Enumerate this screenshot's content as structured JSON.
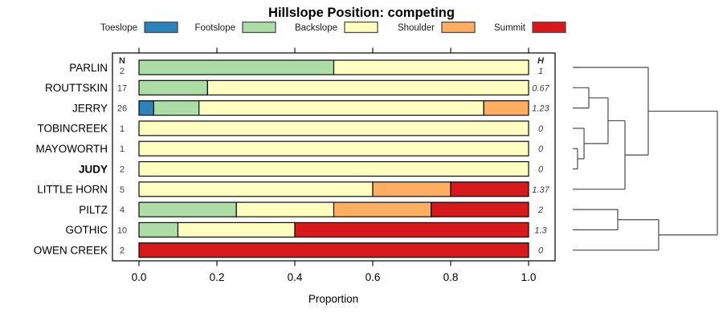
{
  "chart_data": {
    "type": "bar",
    "subtype": "horizontal-stacked-proportion-with-dendrogram",
    "title": "Hillslope Position: competing",
    "xlabel": "Proportion",
    "xlim": [
      0,
      1
    ],
    "x_ticks": [
      "0.0",
      "0.2",
      "0.4",
      "0.6",
      "0.8",
      "1.0"
    ],
    "x_tick_values": [
      0.0,
      0.2,
      0.4,
      0.6,
      0.8,
      1.0
    ],
    "grid": "off",
    "legend_position": "top",
    "legend": [
      {
        "label": "Toeslope",
        "color": "#2B83BA"
      },
      {
        "label": "Footslope",
        "color": "#ABDDA4"
      },
      {
        "label": "Backslope",
        "color": "#FFFFBF"
      },
      {
        "label": "Shoulder",
        "color": "#FDAE61"
      },
      {
        "label": "Summit",
        "color": "#D7191C"
      }
    ],
    "columns": {
      "n_header": "N",
      "h_header": "H"
    },
    "rows": [
      {
        "label": "PARLIN",
        "n": "2",
        "h": "1",
        "bold": false,
        "values": [
          0,
          0.5,
          0.5,
          0,
          0
        ]
      },
      {
        "label": "ROUTTSKIN",
        "n": "17",
        "h": "0.67",
        "bold": false,
        "values": [
          0,
          0.176,
          0.824,
          0,
          0
        ]
      },
      {
        "label": "JERRY",
        "n": "26",
        "h": "1.23",
        "bold": false,
        "values": [
          0.038,
          0.116,
          0.731,
          0.115,
          0
        ]
      },
      {
        "label": "TOBINCREEK",
        "n": "1",
        "h": "0",
        "bold": false,
        "values": [
          0,
          0,
          1,
          0,
          0
        ]
      },
      {
        "label": "MAYOWORTH",
        "n": "1",
        "h": "0",
        "bold": false,
        "values": [
          0,
          0,
          1,
          0,
          0
        ]
      },
      {
        "label": "JUDY",
        "n": "2",
        "h": "0",
        "bold": true,
        "values": [
          0,
          0,
          1,
          0,
          0
        ]
      },
      {
        "label": "LITTLE HORN",
        "n": "5",
        "h": "1.37",
        "bold": false,
        "values": [
          0,
          0,
          0.6,
          0.2,
          0.2
        ]
      },
      {
        "label": "PILTZ",
        "n": "4",
        "h": "2",
        "bold": false,
        "values": [
          0,
          0.25,
          0.25,
          0.25,
          0.25
        ]
      },
      {
        "label": "GOTHIC",
        "n": "10",
        "h": "1.3",
        "bold": false,
        "values": [
          0,
          0.1,
          0.3,
          0,
          0.6
        ]
      },
      {
        "label": "OWEN CREEK",
        "n": "2",
        "h": "0",
        "bold": false,
        "values": [
          0,
          0,
          0,
          0,
          1
        ]
      }
    ],
    "dendrogram": {
      "height": 1.0,
      "children": [
        {
          "height": 0.522,
          "children": [
            {
              "leaf": "PARLIN"
            },
            {
              "height": 0.361,
              "children": [
                {
                  "height": 0.244,
                  "children": [
                    {
                      "height": 0.111,
                      "children": [
                        {
                          "leaf": "ROUTTSKIN"
                        },
                        {
                          "leaf": "JERRY"
                        }
                      ]
                    },
                    {
                      "height": 0.078,
                      "children": [
                        {
                          "leaf": "TOBINCREEK"
                        },
                        {
                          "height": 0.033,
                          "children": [
                            {
                              "leaf": "MAYOWORTH"
                            },
                            {
                              "leaf": "JUDY"
                            }
                          ]
                        }
                      ]
                    }
                  ]
                },
                {
                  "leaf": "LITTLE HORN"
                }
              ]
            }
          ]
        },
        {
          "height": 0.594,
          "children": [
            {
              "height": 0.311,
              "children": [
                {
                  "leaf": "PILTZ"
                },
                {
                  "leaf": "GOTHIC"
                }
              ]
            },
            {
              "leaf": "OWEN CREEK"
            }
          ]
        }
      ]
    }
  }
}
